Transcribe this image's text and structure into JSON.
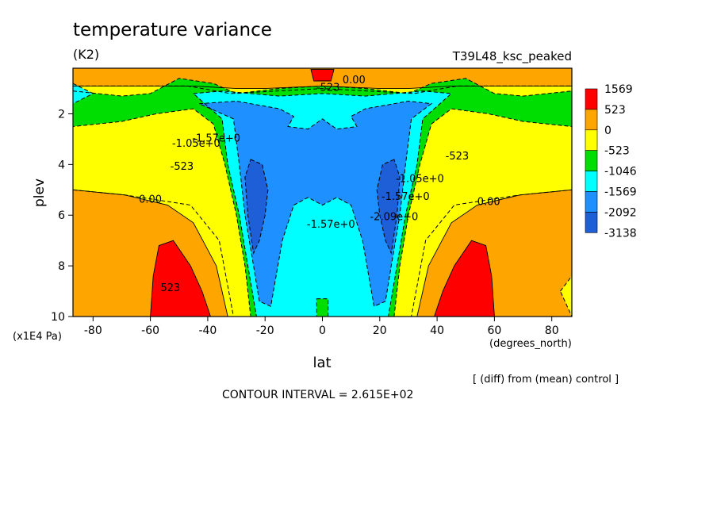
{
  "chart_data": {
    "type": "heatmap",
    "title": "temperature variance",
    "units": "(K2)",
    "run_name": "T39L48_ksc_peaked",
    "xlabel": "lat",
    "x_units": "(degrees_north)",
    "ylabel": "plev",
    "y_units": "(x1E4 Pa)",
    "note": "[ (diff) from (mean) control ]",
    "contour_interval_text": "CONTOUR INTERVAL = 2.615E+02",
    "xlim": [
      -87,
      87
    ],
    "ylim": [
      10,
      0.2
    ],
    "x_ticks": [
      -80,
      -60,
      -40,
      -20,
      0,
      20,
      40,
      60,
      80
    ],
    "y_ticks": [
      2,
      4,
      6,
      8,
      10
    ],
    "colorbar": {
      "levels": [
        "1569",
        "523",
        "0",
        "-523",
        "-1046",
        "-1569",
        "-2092",
        "-3138"
      ],
      "colors": [
        "#ff0000",
        "#ffa500",
        "#ffff00",
        "#00dd00",
        "#00ffff",
        "#1e90ff",
        "#1e5fd8"
      ]
    },
    "contour_labels": [
      {
        "text": "0.00",
        "x": 11,
        "y": 0.8
      },
      {
        "text": "-523",
        "x": 2,
        "y": 1.1
      },
      {
        "text": "-1.05e+0",
        "x": -44,
        "y": 3.3
      },
      {
        "text": "-1.57e+0",
        "x": -37,
        "y": 3.1
      },
      {
        "text": "-523",
        "x": -49,
        "y": 4.2
      },
      {
        "text": "0.00",
        "x": -60,
        "y": 5.5
      },
      {
        "text": "-1.57e+0",
        "x": 3,
        "y": 6.5
      },
      {
        "text": "-2.09e+0",
        "x": 25,
        "y": 6.2
      },
      {
        "text": "-1.57e+0",
        "x": 29,
        "y": 5.4
      },
      {
        "text": "-1.05e+0",
        "x": 34,
        "y": 4.7
      },
      {
        "text": "-523",
        "x": 47,
        "y": 3.8
      },
      {
        "text": "0.00",
        "x": 58,
        "y": 5.6
      },
      {
        "text": "523",
        "x": -53,
        "y": 9.0
      }
    ],
    "fields": [
      {
        "value": "0 to 523",
        "color": "#ffa500",
        "x": [
          -87,
          -45,
          -32,
          -20,
          0,
          20,
          32,
          45,
          87,
          87,
          45,
          30,
          20,
          0,
          -20,
          -30,
          -45,
          -87
        ],
        "y": [
          0.2,
          0.2,
          0.2,
          0.2,
          0.2,
          0.2,
          0.2,
          0.2,
          0.2,
          0.9,
          0.9,
          1.0,
          1.0,
          0.9,
          1.0,
          1.0,
          0.9,
          0.9
        ]
      },
      {
        "value": "-523 to 0",
        "color": "#ffff00",
        "x": [
          -87,
          -47,
          -32,
          0,
          32,
          47,
          87,
          87,
          69,
          46,
          36,
          31,
          33,
          40,
          0,
          -40,
          -33,
          -31,
          -36,
          -46,
          -69,
          -87
        ],
        "y": [
          0.9,
          0.9,
          1.2,
          1.0,
          1.2,
          0.9,
          0.9,
          5.0,
          5.2,
          5.6,
          7.0,
          10,
          10,
          10,
          10,
          10,
          10,
          10,
          7.0,
          5.6,
          5.2,
          5.0
        ]
      },
      {
        "value": "0 to 523",
        "color": "#ffa500",
        "x": [
          -87,
          -69,
          -54,
          -45,
          -37,
          -33,
          -37,
          -50,
          -60,
          -87
        ],
        "y": [
          5.0,
          5.2,
          5.6,
          6.3,
          8.0,
          10,
          10,
          10,
          10,
          10
        ]
      },
      {
        "value": "0 to 523",
        "color": "#ffa500",
        "x": [
          87,
          69,
          54,
          45,
          37,
          33,
          37,
          50,
          60,
          87
        ],
        "y": [
          5.0,
          5.2,
          5.6,
          6.3,
          8.0,
          10,
          10,
          10,
          10,
          10
        ]
      },
      {
        "value": "523 to 1569",
        "color": "#ff0000",
        "x": [
          -57,
          -52,
          -46,
          -42,
          -39,
          -42,
          -50,
          -60,
          -59
        ],
        "y": [
          7.2,
          7.0,
          8.0,
          9.0,
          10,
          10,
          10,
          10,
          8.4
        ]
      },
      {
        "value": "523 to 1569",
        "color": "#ff0000",
        "x": [
          57,
          52,
          46,
          42,
          39,
          42,
          50,
          60,
          59
        ],
        "y": [
          7.2,
          7.0,
          8.0,
          9.0,
          10,
          10,
          10,
          10,
          8.4
        ]
      },
      {
        "value": "-1046 to -523",
        "color": "#00dd00",
        "x": [
          -87,
          -70,
          -60,
          -50,
          -38,
          -30,
          -15,
          0,
          15,
          30,
          38,
          50,
          60,
          70,
          87,
          87,
          70,
          58,
          45,
          38,
          34,
          30,
          27,
          25,
          22,
          18,
          -18,
          -22,
          -25,
          -27,
          -30,
          -34,
          -38,
          -45,
          -58,
          -70,
          -87
        ],
        "y": [
          1.1,
          1.3,
          1.2,
          0.6,
          0.8,
          1.2,
          1.0,
          0.9,
          1.0,
          1.2,
          0.8,
          0.6,
          1.2,
          1.3,
          1.1,
          2.5,
          2.3,
          2.0,
          1.8,
          2.4,
          4.0,
          6.0,
          8.0,
          10,
          10,
          10,
          10,
          10,
          10,
          8.0,
          6.0,
          4.0,
          2.4,
          1.8,
          2.0,
          2.3,
          2.5
        ]
      },
      {
        "value": "-1569 to -1046",
        "color": "#00ffff",
        "x": [
          -87,
          -80,
          -87
        ],
        "y": [
          0.8,
          1.2,
          1.6
        ]
      },
      {
        "value": "-1569 to -1046",
        "color": "#00ffff",
        "x": [
          -45,
          -35,
          -15,
          0,
          15,
          35,
          45,
          35,
          33,
          29,
          26,
          23,
          20,
          -20,
          -23,
          -26,
          -29,
          -33,
          -35
        ],
        "y": [
          1.2,
          1.1,
          1.3,
          1.2,
          1.3,
          1.1,
          1.2,
          2.2,
          4.0,
          6.0,
          8.0,
          10,
          10,
          10,
          10,
          8.0,
          6.0,
          4.0,
          2.2
        ]
      },
      {
        "value": "-2092 to -1569",
        "color": "#1e90ff",
        "x": [
          -43,
          -30,
          -15,
          -10,
          -12,
          -5,
          0,
          5,
          12,
          10,
          15,
          30,
          38,
          31,
          29,
          27,
          24,
          22,
          18,
          14,
          10,
          5,
          0,
          -5,
          -10,
          -14,
          -18,
          -22,
          -24,
          -27,
          -29,
          -31
        ],
        "y": [
          1.6,
          1.5,
          1.8,
          2.1,
          2.5,
          2.6,
          2.2,
          2.6,
          2.5,
          2.1,
          1.8,
          1.5,
          1.6,
          2.2,
          4.0,
          6.0,
          8.0,
          9.4,
          9.6,
          7.0,
          5.6,
          5.3,
          5.6,
          5.3,
          5.6,
          7.0,
          9.6,
          9.4,
          8.0,
          6.0,
          4.0,
          2.2
        ]
      },
      {
        "value": "-3138 to -2092",
        "color": "#1e5fd8",
        "x": [
          -25,
          -21,
          -19,
          -20,
          -22,
          -24,
          -26,
          -27
        ],
        "y": [
          3.8,
          4.0,
          5.0,
          6.0,
          7.0,
          7.5,
          6.0,
          4.5
        ]
      },
      {
        "value": "-3138 to -2092",
        "color": "#1e5fd8",
        "x": [
          25,
          21,
          19,
          20,
          22,
          24,
          26,
          27
        ],
        "y": [
          3.8,
          4.0,
          5.0,
          6.0,
          7.0,
          7.5,
          6.0,
          4.5
        ]
      },
      {
        "value": "-1046 to -523",
        "color": "#00dd00",
        "x": [
          -2,
          2,
          2,
          -2
        ],
        "y": [
          9.3,
          9.3,
          10,
          10
        ]
      },
      {
        "value": "-523 to 0",
        "color": "#ffff00",
        "x": [
          83,
          87,
          87
        ],
        "y": [
          9.0,
          8.4,
          10
        ]
      },
      {
        "value": "523 to 1569",
        "color": "#ff0000",
        "x": [
          -4,
          4,
          3,
          -3
        ],
        "y": [
          0.25,
          0.25,
          0.7,
          0.7
        ]
      }
    ]
  }
}
